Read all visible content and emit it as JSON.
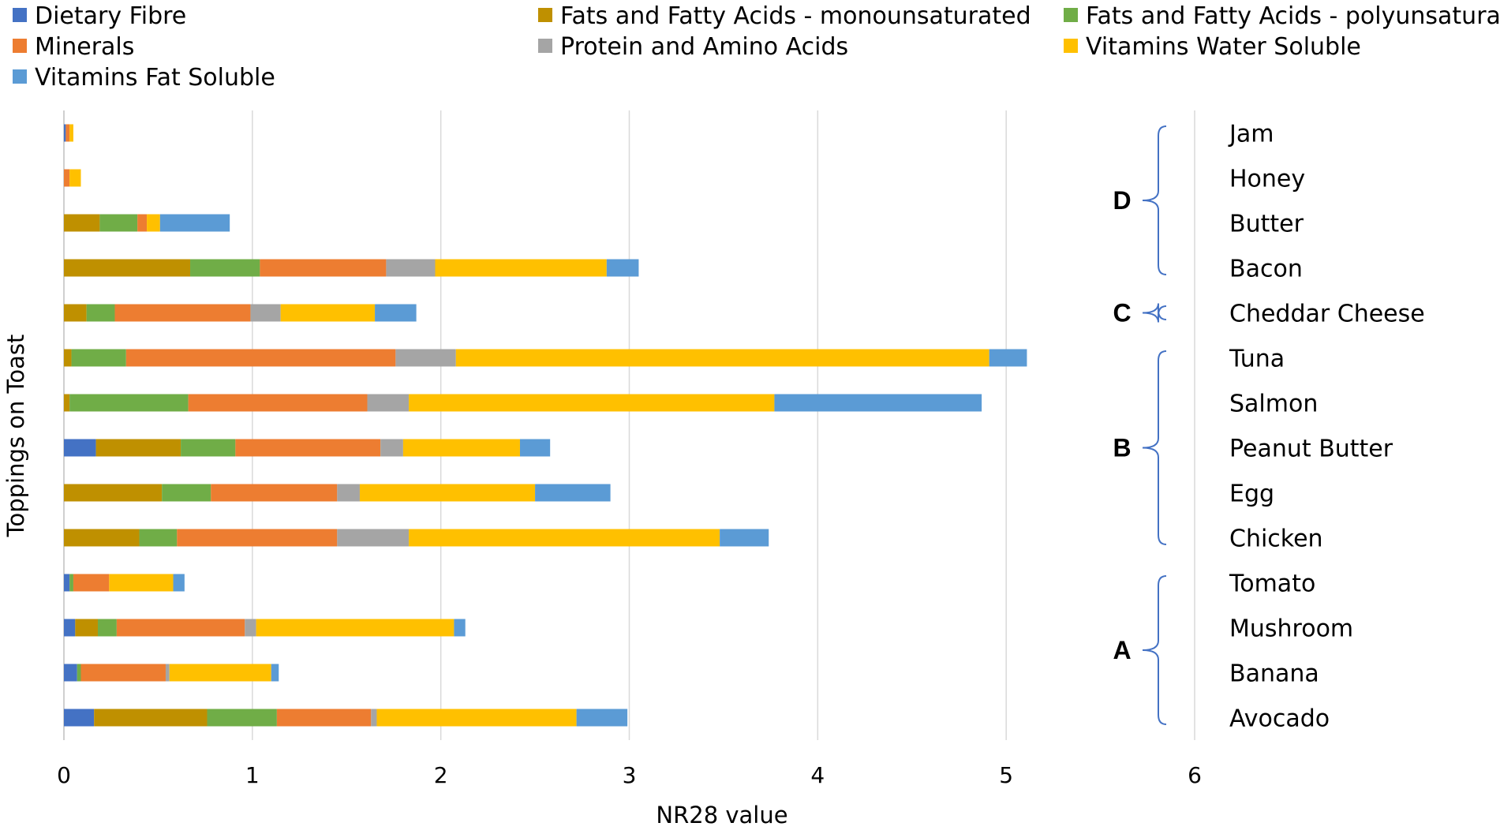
{
  "chart_data": {
    "type": "bar",
    "orientation": "horizontal",
    "stacked": true,
    "title": "",
    "xlabel": "NR28 value",
    "ylabel": "Toppings on Toast",
    "xlim": [
      0,
      6
    ],
    "xticks": [
      "0",
      "1",
      "2",
      "3",
      "4",
      "5",
      "6"
    ],
    "grid": true,
    "legend_position": "top",
    "categories_top_to_bottom": [
      "Jam",
      "Honey",
      "Butter",
      "Bacon",
      "Cheddar Cheese",
      "Tuna",
      "Salmon",
      "Peanut Butter",
      "Egg",
      "Chicken",
      "Tomato",
      "Mushroom",
      "Banana",
      "Avocado"
    ],
    "series": [
      {
        "name": "Dietary Fibre",
        "color": "#4472c4",
        "values": [
          0.01,
          0.0,
          0.0,
          0.0,
          0.0,
          0.0,
          0.0,
          0.17,
          0.0,
          0.0,
          0.03,
          0.06,
          0.07,
          0.16
        ]
      },
      {
        "name": "Fats and Fatty Acids - monounsaturated",
        "color": "#bf9000",
        "values": [
          0.0,
          0.0,
          0.19,
          0.67,
          0.12,
          0.04,
          0.03,
          0.45,
          0.52,
          0.4,
          0.0,
          0.12,
          0.0,
          0.6
        ]
      },
      {
        "name": "Fats and Fatty Acids - polyunsaturated",
        "color": "#70ad47",
        "values": [
          0.0,
          0.0,
          0.2,
          0.37,
          0.15,
          0.29,
          0.63,
          0.29,
          0.26,
          0.2,
          0.02,
          0.1,
          0.02,
          0.37
        ]
      },
      {
        "name": "Minerals",
        "color": "#ed7d31",
        "values": [
          0.02,
          0.03,
          0.05,
          0.67,
          0.72,
          1.43,
          0.95,
          0.77,
          0.67,
          0.85,
          0.19,
          0.68,
          0.45,
          0.5
        ]
      },
      {
        "name": "Protein and Amino Acids",
        "color": "#a5a5a5",
        "values": [
          0.0,
          0.0,
          0.0,
          0.26,
          0.16,
          0.32,
          0.22,
          0.12,
          0.12,
          0.38,
          0.0,
          0.06,
          0.02,
          0.03
        ]
      },
      {
        "name": "Vitamins Water Soluble",
        "color": "#ffc000",
        "values": [
          0.02,
          0.06,
          0.07,
          0.91,
          0.5,
          2.83,
          1.94,
          0.62,
          0.93,
          1.65,
          0.34,
          1.05,
          0.54,
          1.06
        ]
      },
      {
        "name": "Vitamins Fat Soluble",
        "color": "#5b9bd5",
        "values": [
          0.0,
          0.0,
          0.37,
          0.17,
          0.22,
          0.2,
          1.1,
          0.16,
          0.4,
          0.26,
          0.06,
          0.06,
          0.04,
          0.27
        ]
      }
    ],
    "groups": [
      {
        "label": "D",
        "members": [
          "Jam",
          "Honey",
          "Butter",
          "Bacon"
        ]
      },
      {
        "label": "C",
        "members": [
          "Cheddar Cheese"
        ]
      },
      {
        "label": "B",
        "members": [
          "Tuna",
          "Salmon",
          "Peanut Butter",
          "Egg",
          "Chicken"
        ]
      },
      {
        "label": "A",
        "members": [
          "Tomato",
          "Mushroom",
          "Banana",
          "Avocado"
        ]
      }
    ]
  }
}
